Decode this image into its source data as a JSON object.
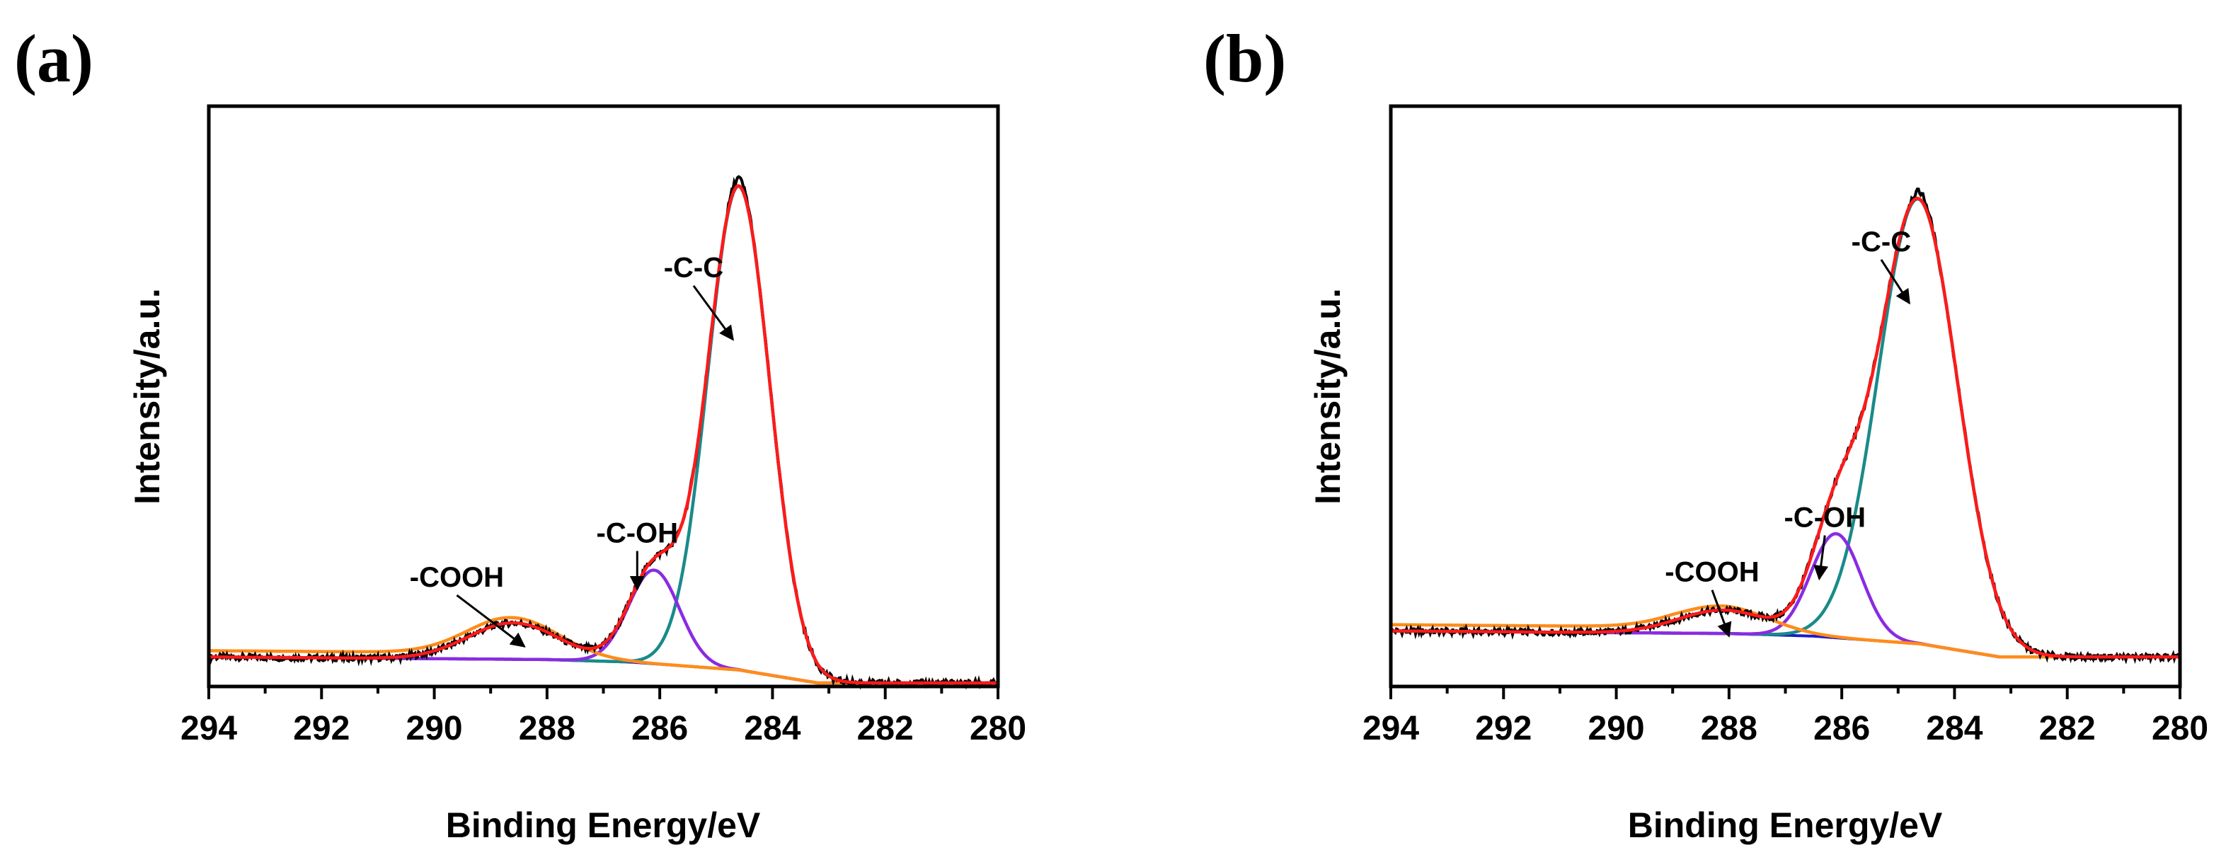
{
  "chart_data": [
    {
      "panel_label": "(a)",
      "type": "line",
      "title": "",
      "xlabel": "Binding Energy/eV",
      "ylabel": "Intensity/a.u.",
      "xlim": [
        294,
        280
      ],
      "x_reversed": true,
      "ylim": [
        0,
        1
      ],
      "xticks": [
        294,
        292,
        290,
        288,
        286,
        284,
        282,
        280
      ],
      "y_tick_labels": false,
      "grid": false,
      "legend": "none",
      "baseline": {
        "x": [
          294,
          288,
          286.5,
          284.6,
          283.2,
          280
        ],
        "y": [
          0.05,
          0.045,
          0.04,
          0.025,
          0.0,
          0.0
        ]
      },
      "components": [
        {
          "name": "-C-C",
          "color": "#1a8a8a",
          "center": 284.6,
          "height": 0.93,
          "width": 0.55,
          "background": "linear"
        },
        {
          "name": "-C-OH",
          "color": "#8a2be2",
          "center": 286.1,
          "height": 0.18,
          "width": 0.45,
          "background": "linear"
        },
        {
          "name": "-COOH",
          "color": "#ff8c1a",
          "center": 288.6,
          "height": 0.07,
          "width": 0.8,
          "background": "shirley"
        }
      ],
      "series": [
        {
          "name": "Raw data",
          "color": "#000000",
          "role": "raw"
        },
        {
          "name": "Envelope",
          "color": "#ff1a1a",
          "role": "fit"
        },
        {
          "name": "Background",
          "color": "#1a1acc",
          "role": "background"
        }
      ],
      "annotations": [
        {
          "text": "-C-C",
          "x": 285.4,
          "y": 0.78,
          "arrow_to": [
            284.7,
            0.66
          ]
        },
        {
          "text": "-C-OH",
          "x": 286.4,
          "y": 0.27,
          "arrow_to": [
            286.4,
            0.18
          ]
        },
        {
          "text": "-COOH",
          "x": 289.6,
          "y": 0.185,
          "arrow_to": [
            288.4,
            0.07
          ]
        }
      ]
    },
    {
      "panel_label": "(b)",
      "type": "line",
      "title": "",
      "xlabel": "Binding Energy/eV",
      "ylabel": "Intensity/a.u.",
      "xlim": [
        294,
        280
      ],
      "x_reversed": true,
      "ylim": [
        0,
        1
      ],
      "xticks": [
        294,
        292,
        290,
        288,
        286,
        284,
        282,
        280
      ],
      "y_tick_labels": false,
      "grid": false,
      "legend": "none",
      "baseline": {
        "x": [
          294,
          288,
          286.5,
          284.6,
          283.2,
          280
        ],
        "y": [
          0.1,
          0.095,
          0.09,
          0.075,
          0.05,
          0.05
        ]
      },
      "components": [
        {
          "name": "-C-C",
          "color": "#1a8a8a",
          "center": 284.65,
          "height": 0.855,
          "width": 0.7,
          "background": "linear"
        },
        {
          "name": "-C-OH",
          "color": "#8a2be2",
          "center": 286.1,
          "height": 0.2,
          "width": 0.45,
          "background": "linear"
        },
        {
          "name": "-COOH",
          "color": "#ff8c1a",
          "center": 288.1,
          "height": 0.045,
          "width": 0.8,
          "background": "shirley"
        }
      ],
      "series": [
        {
          "name": "Raw data",
          "color": "#000000",
          "role": "raw"
        },
        {
          "name": "Envelope",
          "color": "#ff1a1a",
          "role": "fit"
        },
        {
          "name": "Background",
          "color": "#1a1acc",
          "role": "background"
        }
      ],
      "annotations": [
        {
          "text": "-C-C",
          "x": 285.3,
          "y": 0.83,
          "arrow_to": [
            284.8,
            0.73
          ]
        },
        {
          "text": "-C-OH",
          "x": 286.3,
          "y": 0.3,
          "arrow_to": [
            286.4,
            0.2
          ]
        },
        {
          "text": "-COOH",
          "x": 288.3,
          "y": 0.195,
          "arrow_to": [
            288.0,
            0.09
          ]
        }
      ]
    }
  ]
}
